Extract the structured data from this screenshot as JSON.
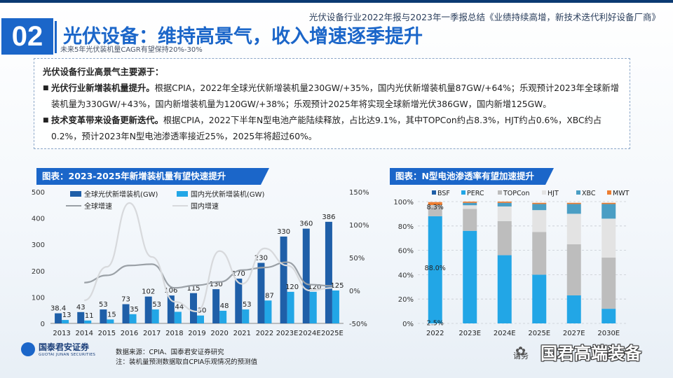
{
  "header": {
    "doc_title": "光伏设备行业2022年报与2023年一季报总结《业绩持续高增，新技术迭代利好设备厂商》",
    "section_number": "02",
    "title": "光伏设备：维持高景气，收入增速逐季提升",
    "subtitle": "未来5年光伏装机量CAGR有望保持20%-30%"
  },
  "summary": {
    "intro": "光伏设备行业高景气主要源于：",
    "bullets": [
      {
        "bold": "光伏行业新增装机量提升。",
        "text": "根据CPIA，2022年全球光伏新增装机量230GW/+35%，国内光伏新增装机量87GW/+64%；乐观预计2023年全球新增装机量为330GW/+43%，国内新增装机量为120GW/+38%；乐观预计2025年将实现全球新增光伏386GW，国内新增125GW。"
      },
      {
        "bold": "技术变革带来设备更新迭代。",
        "text": "根据CPIA，2022下半年N型电池产能陆续释放，占比达9.1%，其中TOPCon约占8.3%，HJT约占0.6%，XBC约占0.2%，预计2023年N型电池渗透率接近25%，2025年将超过60%。"
      }
    ]
  },
  "chart_left_title": "图表：2023-2025年新增装机量有望快速提升",
  "chart_right_title": "图表：N型电池渗透率有望加速提升",
  "chart_data": [
    {
      "type": "bar",
      "title": "图表：2023-2025年新增装机量有望快速提升",
      "categories": [
        "2013",
        "2014",
        "2015",
        "2016",
        "2017",
        "2018",
        "2019",
        "2020",
        "2021",
        "2022",
        "2023E",
        "2024E",
        "2025E"
      ],
      "series": [
        {
          "name": "全球光伏新增装机(GW)",
          "type": "bar",
          "axis": "left",
          "color": "#1f5fa8",
          "values": [
            38.4,
            43,
            53,
            73,
            102,
            106,
            115,
            130,
            170,
            230,
            330,
            360,
            386
          ]
        },
        {
          "name": "国内光伏新增装机(GW)",
          "type": "bar",
          "axis": "left",
          "color": "#22a6e6",
          "values": [
            13,
            11,
            15,
            35,
            53,
            44,
            30,
            48,
            53,
            87,
            120,
            120,
            125
          ]
        },
        {
          "name": "全球增速",
          "type": "line",
          "axis": "right",
          "color": "#9aa0a6",
          "values": [
            null,
            12,
            23,
            38,
            40,
            4,
            8,
            13,
            31,
            35,
            43,
            9,
            7
          ]
        },
        {
          "name": "国内增速",
          "type": "line",
          "axis": "right",
          "color": "#d7d9dc",
          "values": [
            null,
            -15,
            36,
            133,
            51,
            -17,
            -32,
            60,
            10,
            64,
            38,
            0,
            4
          ]
        }
      ],
      "data_labels_global": [
        "38.4",
        "43",
        "53",
        "73",
        "102",
        "106",
        "115",
        "130",
        "170",
        "230",
        "330",
        "360",
        "386"
      ],
      "data_labels_domestic": [
        "13",
        "11",
        "15",
        "35",
        "53",
        "44",
        "30",
        "48",
        "53",
        "87",
        "120",
        "120",
        "125"
      ],
      "ylim": [
        0,
        500
      ],
      "yticks": [
        "0",
        "100",
        "200",
        "300",
        "400",
        "500"
      ],
      "y2lim": [
        -50,
        150
      ],
      "y2ticks": [
        "-50%",
        "0%",
        "50%",
        "100%",
        "150%"
      ],
      "legend": "top-left"
    },
    {
      "type": "bar",
      "stacked": true,
      "title": "图表：N型电池渗透率有望加速提升",
      "categories": [
        "2022",
        "2023E",
        "2024E",
        "2025E",
        "2027E",
        "2030E"
      ],
      "series": [
        {
          "name": "BSF",
          "color": "#1f5fa8",
          "values": [
            0,
            0,
            0,
            0,
            0,
            0
          ]
        },
        {
          "name": "PERC",
          "color": "#22a6e6",
          "values": [
            88.0,
            76,
            56,
            40,
            23,
            12
          ]
        },
        {
          "name": "TOPCon",
          "color": "#bdbdbd",
          "values": [
            8.3,
            18,
            28,
            35,
            42,
            42
          ]
        },
        {
          "name": "HJT",
          "color": "#e3e3e3",
          "values": [
            0.6,
            3,
            12,
            18,
            25,
            32
          ]
        },
        {
          "name": "XBC",
          "color": "#4a9ec4",
          "values": [
            0.2,
            2,
            3,
            5,
            8,
            12
          ]
        },
        {
          "name": "MWT",
          "color": "#ec7d31",
          "values": [
            2.5,
            1,
            1,
            1,
            1,
            1
          ]
        }
      ],
      "labels": [
        "8.3%",
        "88.0%",
        "2.5%"
      ],
      "ylim": [
        0,
        100
      ],
      "yticks": [
        "0%",
        "20%",
        "40%",
        "60%",
        "80%",
        "100%"
      ],
      "legend": "top"
    }
  ],
  "footer": {
    "source": "数据来源：CPIA、国泰君安证券研究",
    "note": "注：装机量预测数据取自CPIA乐观情况的预测值",
    "logo_cn": "国泰君安证券",
    "logo_en": "GUOTAI JUNAN SECURITIES",
    "watermark": "国君高端装备",
    "watermark_small": "请务"
  }
}
